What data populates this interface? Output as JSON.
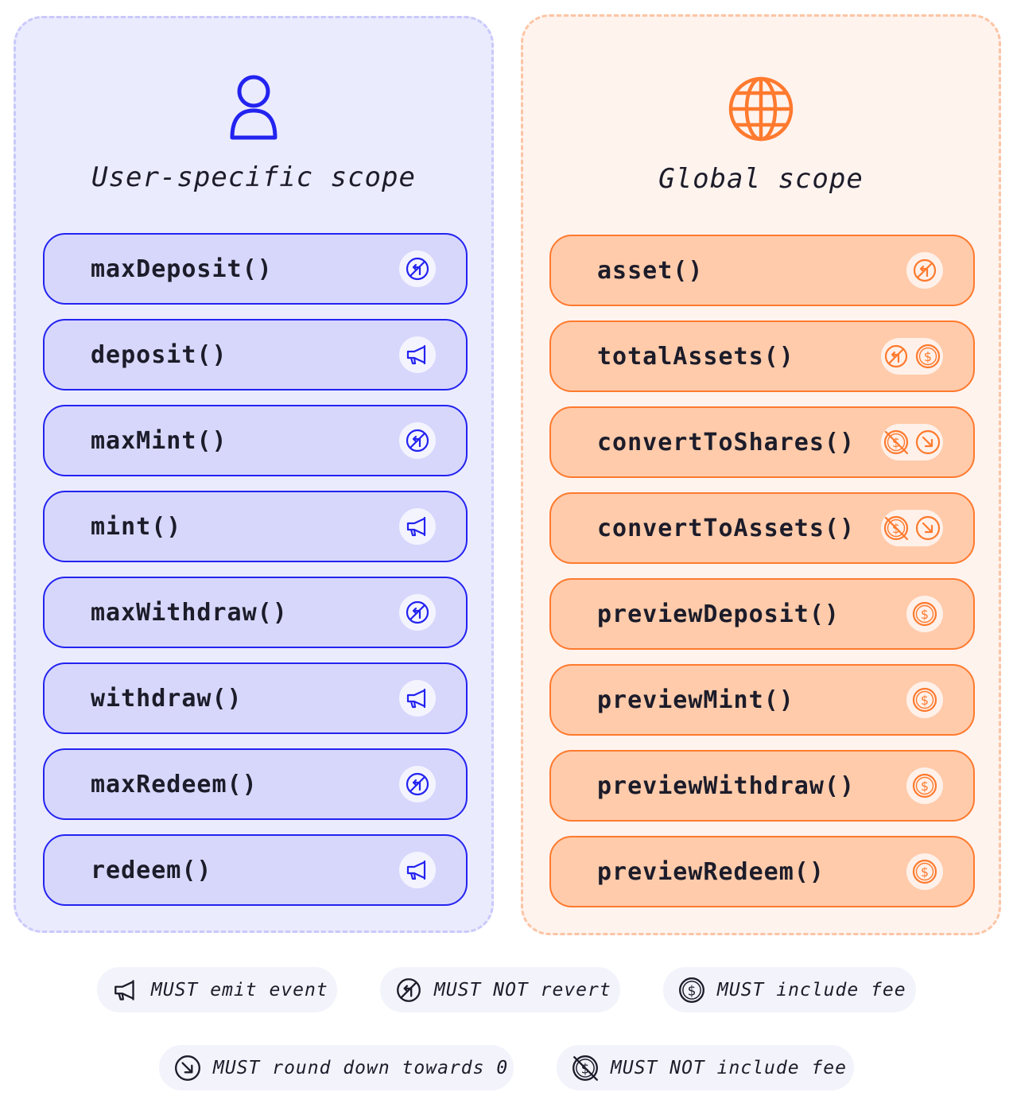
{
  "colors": {
    "user_accent": "#2323f0",
    "global_accent": "#ff7a2e"
  },
  "user_scope": {
    "title": "User-specific scope",
    "icon": "user-icon",
    "functions": [
      {
        "name": "maxDeposit()",
        "icons": [
          "no-revert-icon"
        ]
      },
      {
        "name": "deposit()",
        "icons": [
          "megaphone-icon"
        ]
      },
      {
        "name": "maxMint()",
        "icons": [
          "no-revert-icon"
        ]
      },
      {
        "name": "mint()",
        "icons": [
          "megaphone-icon"
        ]
      },
      {
        "name": "maxWithdraw()",
        "icons": [
          "no-revert-icon"
        ]
      },
      {
        "name": "withdraw()",
        "icons": [
          "megaphone-icon"
        ]
      },
      {
        "name": "maxRedeem()",
        "icons": [
          "no-revert-icon"
        ]
      },
      {
        "name": "redeem()",
        "icons": [
          "megaphone-icon"
        ]
      }
    ]
  },
  "global_scope": {
    "title": "Global scope",
    "icon": "globe-icon",
    "functions": [
      {
        "name": "asset()",
        "icons": [
          "no-revert-icon"
        ]
      },
      {
        "name": "totalAssets()",
        "icons": [
          "no-revert-icon",
          "fee-icon"
        ]
      },
      {
        "name": "convertToShares()",
        "icons": [
          "no-fee-icon",
          "round-down-icon"
        ]
      },
      {
        "name": "convertToAssets()",
        "icons": [
          "no-fee-icon",
          "round-down-icon"
        ]
      },
      {
        "name": "previewDeposit()",
        "icons": [
          "fee-icon"
        ]
      },
      {
        "name": "previewMint()",
        "icons": [
          "fee-icon"
        ]
      },
      {
        "name": "previewWithdraw()",
        "icons": [
          "fee-icon"
        ]
      },
      {
        "name": "previewRedeem()",
        "icons": [
          "fee-icon"
        ]
      }
    ]
  },
  "legend": [
    {
      "icon": "megaphone-icon",
      "label": "MUST emit event"
    },
    {
      "icon": "no-revert-icon",
      "label": "MUST NOT revert"
    },
    {
      "icon": "fee-icon",
      "label": "MUST include fee"
    },
    {
      "icon": "round-down-icon",
      "label": "MUST round down towards 0"
    },
    {
      "icon": "no-fee-icon",
      "label": "MUST NOT include fee"
    }
  ]
}
